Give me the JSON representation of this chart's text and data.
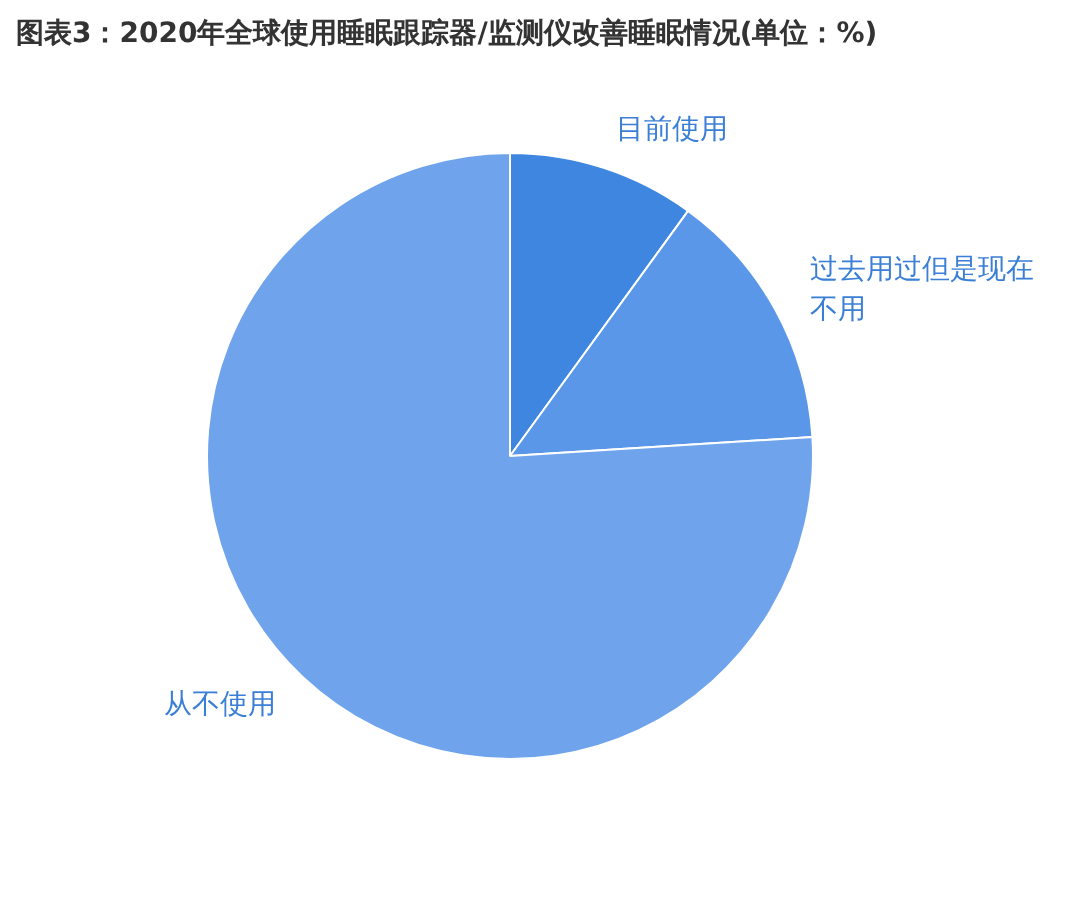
{
  "chart_data": {
    "type": "pie",
    "title": "图表3：2020年全球使用睡眠跟踪器/监测仪改善睡眠情况(单位：%)",
    "categories": [
      "目前使用",
      "过去用过但是现在不用",
      "从不使用"
    ],
    "values": [
      10,
      14,
      76
    ],
    "colors": [
      "#3f86e0",
      "#5a97e8",
      "#6fa4ec"
    ],
    "legend": false
  }
}
